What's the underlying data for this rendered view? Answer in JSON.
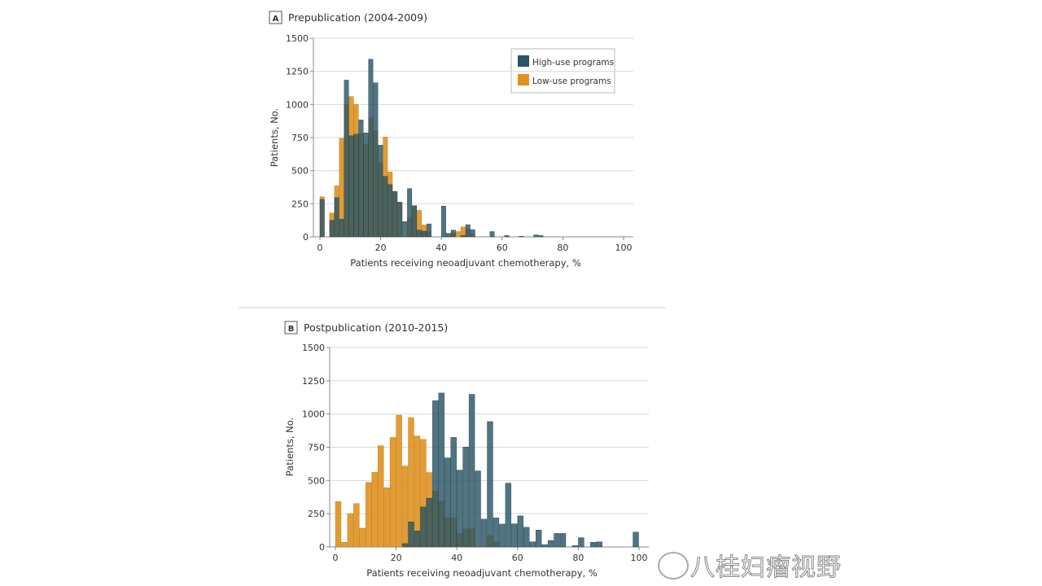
{
  "colors": {
    "high": "#2b5566",
    "low": "#e0911f",
    "grid": "#d9d9d9"
  },
  "chart_data": [
    {
      "type": "bar",
      "panel_label": "A",
      "title": "Prepublication (2004-2009)",
      "xlabel": "Patients receiving neoadjuvant chemotherapy, %",
      "ylabel": "Patients, No.",
      "xlim": [
        0,
        100
      ],
      "ylim": [
        0,
        1500
      ],
      "xticks": [
        "0",
        "20",
        "40",
        "60",
        "80",
        "100"
      ],
      "yticks": [
        "0",
        "250",
        "500",
        "750",
        "1000",
        "1250",
        "1500"
      ],
      "grid": true,
      "legend": {
        "placement": "top-right",
        "entries": [
          "High-use programs",
          "Low-use programs"
        ]
      },
      "bin_width": 1.6,
      "series": [
        {
          "name": "Low-use programs",
          "values": [
            303,
            0,
            180,
            385,
            744,
            1000,
            1060,
            1000,
            780,
            700,
            900,
            800,
            560,
            754,
            490,
            340,
            260,
            0,
            150,
            230,
            200,
            90,
            40,
            0,
            0,
            0,
            0,
            30,
            40,
            75,
            60,
            20,
            0,
            0,
            0,
            0,
            0,
            0,
            0,
            0,
            0,
            0,
            0,
            0,
            0,
            0
          ]
        },
        {
          "name": "High-use programs",
          "values": [
            283,
            0,
            125,
            297,
            133,
            1184,
            764,
            775,
            883,
            785,
            1342,
            1164,
            693,
            457,
            395,
            344,
            262,
            115,
            365,
            236,
            51,
            43,
            98,
            0,
            0,
            232,
            27,
            51,
            0,
            10,
            92,
            55,
            0,
            0,
            0,
            40,
            0,
            0,
            10,
            0,
            0,
            5,
            0,
            0,
            15,
            10
          ]
        }
      ]
    },
    {
      "type": "bar",
      "panel_label": "B",
      "title": "Postpublication (2010-2015)",
      "xlabel": "Patients receiving neoadjuvant chemotherapy, %",
      "ylabel": "Patients, No.",
      "xlim": [
        0,
        100
      ],
      "ylim": [
        0,
        1500
      ],
      "xticks": [
        "0",
        "20",
        "40",
        "60",
        "80",
        "100"
      ],
      "yticks": [
        "0",
        "250",
        "500",
        "750",
        "1000",
        "1250",
        "1500"
      ],
      "grid": true,
      "bin_width": 2,
      "series": [
        {
          "name": "Low-use programs",
          "values": [
            342,
            35,
            250,
            326,
            141,
            486,
            561,
            762,
            445,
            824,
            992,
            609,
            973,
            834,
            809,
            560,
            420,
            346,
            220,
            219,
            100,
            137,
            137,
            0,
            0,
            86,
            35,
            0,
            0,
            0,
            0,
            0,
            0,
            0,
            0,
            0,
            0,
            0,
            0,
            0,
            0,
            0,
            0,
            0,
            0,
            0,
            0,
            0,
            0,
            0
          ]
        },
        {
          "name": "High-use programs",
          "values": [
            0,
            0,
            0,
            0,
            0,
            0,
            0,
            0,
            0,
            0,
            0,
            25,
            188,
            121,
            301,
            367,
            1100,
            1158,
            670,
            824,
            578,
            752,
            1148,
            572,
            209,
            943,
            219,
            172,
            480,
            174,
            234,
            148,
            39,
            127,
            18,
            49,
            102,
            102,
            0,
            10,
            70,
            0,
            35,
            39,
            0,
            0,
            0,
            0,
            0,
            111
          ]
        }
      ]
    }
  ],
  "watermark": "八桂妇瘤视野"
}
